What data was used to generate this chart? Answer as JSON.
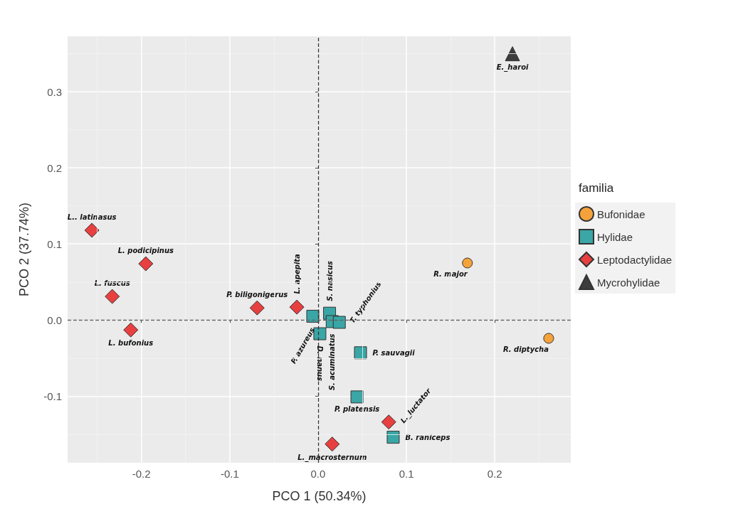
{
  "chart_data": {
    "type": "scatter",
    "xlabel": "PCO 1 (50.34%)",
    "ylabel": "PCO 2 (37.74%)",
    "legend_title": "familia",
    "legend": "right",
    "grid": true,
    "xlim": [
      -0.2835,
      0.286
    ],
    "ylim": [
      -0.1875,
      0.373
    ],
    "xticks": [
      -0.2,
      -0.1,
      {
        "value": 0,
        "label": "0.0"
      },
      0.1,
      0.2
    ],
    "yticks": [
      -0.1,
      {
        "value": 0,
        "label": "0.0"
      },
      0.1,
      0.2,
      0.3
    ],
    "ref_lines": [
      {
        "axis": "x",
        "value": 0,
        "line_style": "dashed",
        "color": "#333333"
      },
      {
        "axis": "y",
        "value": 0,
        "line_style": "dashed",
        "color": "#666666"
      }
    ],
    "series": [
      {
        "name": "Bufonidae",
        "color": "#f5a23a",
        "marker": "circle",
        "x": [
          0.169,
          0.261
        ],
        "values": [
          0.075,
          -0.024
        ],
        "value_labels": [
          "R. major",
          "R. diptycha"
        ]
      },
      {
        "name": "Hylidae",
        "color": "#3aa6a6",
        "marker": "square",
        "x": [
          -0.006,
          0.002,
          0.013,
          0.016,
          0.024,
          0.048,
          0.044,
          0.085
        ],
        "values": [
          0.005,
          -0.018,
          0.009,
          -0.002,
          -0.003,
          -0.043,
          -0.101,
          -0.154
        ],
        "value_labels": [
          "P. azureus",
          "D. nanus",
          "S. nasicus",
          "S. acuminatus",
          "T. typhonius",
          "P. sauvagii",
          "P. platensis",
          "B. raniceps"
        ]
      },
      {
        "name": "Leptodactylidae",
        "color": "#e84040",
        "marker": "diamond",
        "x": [
          -0.256,
          -0.195,
          -0.233,
          -0.212,
          -0.069,
          -0.024,
          0.08,
          0.016
        ],
        "values": [
          0.118,
          0.074,
          0.031,
          -0.013,
          0.016,
          0.017,
          -0.134,
          -0.163
        ],
        "value_labels": [
          "L.. latinasus",
          "L. podicipinus",
          "L. fuscus",
          "L. bufonius",
          "P. biligonigerus",
          "L. apepita",
          "L._luctator",
          "L._macrosternum"
        ]
      },
      {
        "name": "Mycrohylidae",
        "color": "#3d3d3d",
        "marker": "triangle",
        "x": [
          0.22
        ],
        "values": [
          0.35
        ],
        "value_labels": [
          "E._haroi"
        ]
      }
    ]
  }
}
